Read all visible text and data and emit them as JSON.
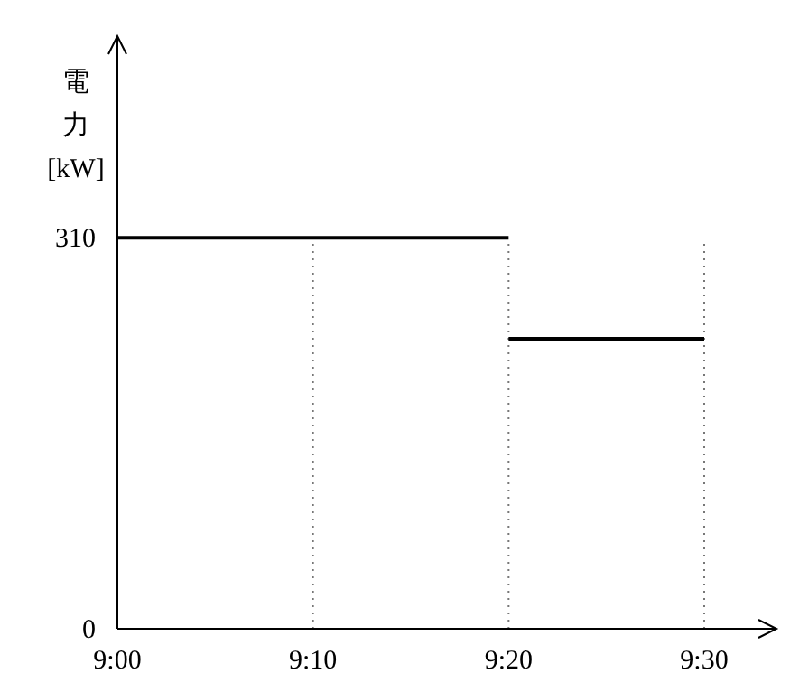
{
  "chart_data": {
    "type": "line",
    "ylabel": "電力 [kW]",
    "series": [
      {
        "color": "#000000",
        "x": [
          9,
          9.3333333
        ],
        "values": [
          310,
          310
        ]
      },
      {
        "color": "#000000",
        "x": [
          9.3333333,
          9.5
        ],
        "values": [
          230,
          230
        ]
      }
    ],
    "xlim": [
      9,
      9.5
    ],
    "xticks": [
      {
        "value": 9,
        "label": "9:00"
      },
      {
        "value": 9.1666667,
        "label": "9:10"
      },
      {
        "value": 9.3333333,
        "label": "9:20"
      },
      {
        "value": 9.5,
        "label": "9:30"
      }
    ],
    "ylim": [
      0,
      470
    ],
    "yticks": [
      0,
      310
    ],
    "ref_lines": [
      {
        "axis": "x",
        "value": 9.1666667,
        "color": "#777777",
        "line_style": "dotted"
      },
      {
        "axis": "x",
        "value": 9.3333333,
        "color": "#777777",
        "line_style": "dotted"
      },
      {
        "axis": "x",
        "value": 9.5,
        "color": "#777777",
        "line_style": "dotted"
      }
    ],
    "line_style": "solid",
    "marker": "none"
  }
}
